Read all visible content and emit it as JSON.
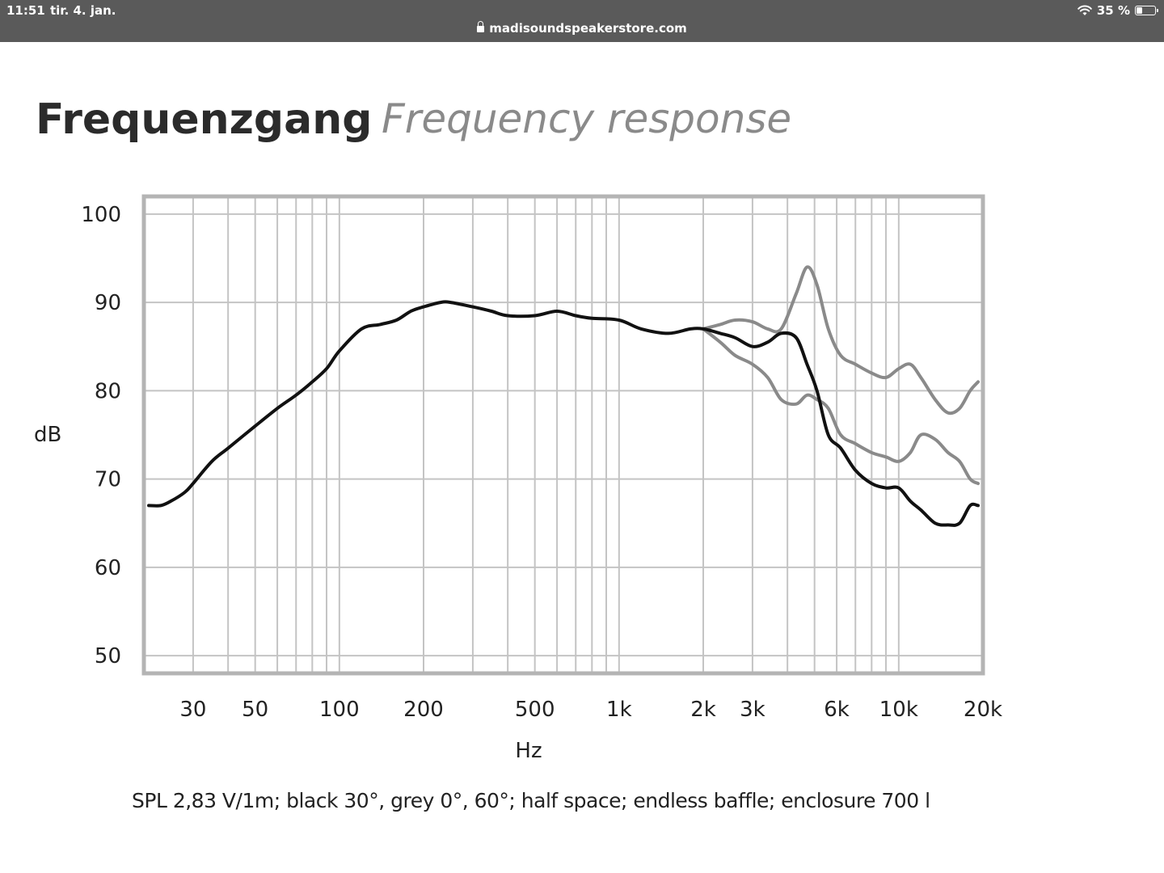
{
  "status_bar": {
    "time": "11:51",
    "date": "tir. 4. jan.",
    "url": "madisoundspeakerstore.com",
    "battery": "35 %",
    "battery_level": 0.35
  },
  "chart_data": {
    "type": "line",
    "title": "Frequenzgang",
    "subtitle": "Frequency response",
    "xlabel": "Hz",
    "ylabel": "dB",
    "x_scale": "log",
    "xlim": [
      20,
      20000
    ],
    "ylim": [
      48,
      102
    ],
    "grid": true,
    "x_ticks": [
      {
        "value": 30,
        "label": "30"
      },
      {
        "value": 50,
        "label": "50"
      },
      {
        "value": 100,
        "label": "100"
      },
      {
        "value": 200,
        "label": "200"
      },
      {
        "value": 500,
        "label": "500"
      },
      {
        "value": 1000,
        "label": "1k"
      },
      {
        "value": 2000,
        "label": "2k"
      },
      {
        "value": 3000,
        "label": "3k"
      },
      {
        "value": 6000,
        "label": "6k"
      },
      {
        "value": 10000,
        "label": "10k"
      },
      {
        "value": 20000,
        "label": "20k"
      }
    ],
    "y_ticks": [
      50,
      60,
      70,
      80,
      90,
      100
    ],
    "series": [
      {
        "name": "",
        "color": "#8a8a8a",
        "x": [
          2000,
          2300,
          2600,
          3000,
          3400,
          3800,
          4300,
          4700,
          5100,
          5600,
          6200,
          7000,
          8000,
          9000,
          10000,
          11000,
          12000,
          13500,
          15000,
          16500,
          18000,
          20000
        ],
        "y": [
          87,
          87.5,
          88,
          87.8,
          87,
          87,
          91,
          94,
          92,
          87,
          84,
          83,
          82,
          81.5,
          82.5,
          83,
          81.5,
          79,
          77.5,
          78,
          80,
          81
        ]
      },
      {
        "name": "",
        "color": "#8a8a8a",
        "x": [
          2000,
          2300,
          2600,
          3000,
          3400,
          3800,
          4300,
          4700,
          5100,
          5600,
          6200,
          7000,
          8000,
          9000,
          10000,
          11000,
          12000,
          13500,
          15000,
          16500,
          18000,
          20000
        ],
        "y": [
          87,
          85.5,
          84,
          83,
          81.5,
          79,
          78.5,
          79.5,
          79,
          78,
          75,
          74,
          73,
          72.5,
          72,
          73,
          75,
          74.5,
          73,
          72,
          70,
          69.5
        ]
      },
      {
        "name": "",
        "color": "#111111",
        "x": [
          20,
          23,
          25,
          28,
          30,
          35,
          40,
          50,
          60,
          70,
          80,
          90,
          100,
          120,
          140,
          160,
          180,
          200,
          230,
          250,
          300,
          350,
          400,
          500,
          600,
          700,
          800,
          1000,
          1200,
          1500,
          1800,
          2000,
          2300,
          2600,
          3000,
          3400,
          3800,
          4300,
          4700,
          5100,
          5600,
          6200,
          7000,
          8000,
          9000,
          10000,
          11000,
          12000,
          13500,
          15000,
          16500,
          18000,
          20000
        ],
        "y": [
          67,
          67,
          67.5,
          68.5,
          69.5,
          72,
          73.5,
          76,
          78,
          79.5,
          81,
          82.5,
          84.5,
          87,
          87.5,
          88,
          89,
          89.5,
          90,
          90,
          89.5,
          89,
          88.5,
          88.5,
          89,
          88.5,
          88.2,
          88,
          87,
          86.5,
          87,
          87,
          86.5,
          86,
          85,
          85.5,
          86.5,
          86,
          83,
          80,
          75,
          73.5,
          71,
          69.5,
          69,
          69,
          67.5,
          66.5,
          65,
          64.8,
          65,
          67,
          67
        ]
      }
    ],
    "annotation": "SPL 2,83 V/1m; black 30°, grey 0°, 60°; half space; endless baffle; enclosure 700 l"
  }
}
